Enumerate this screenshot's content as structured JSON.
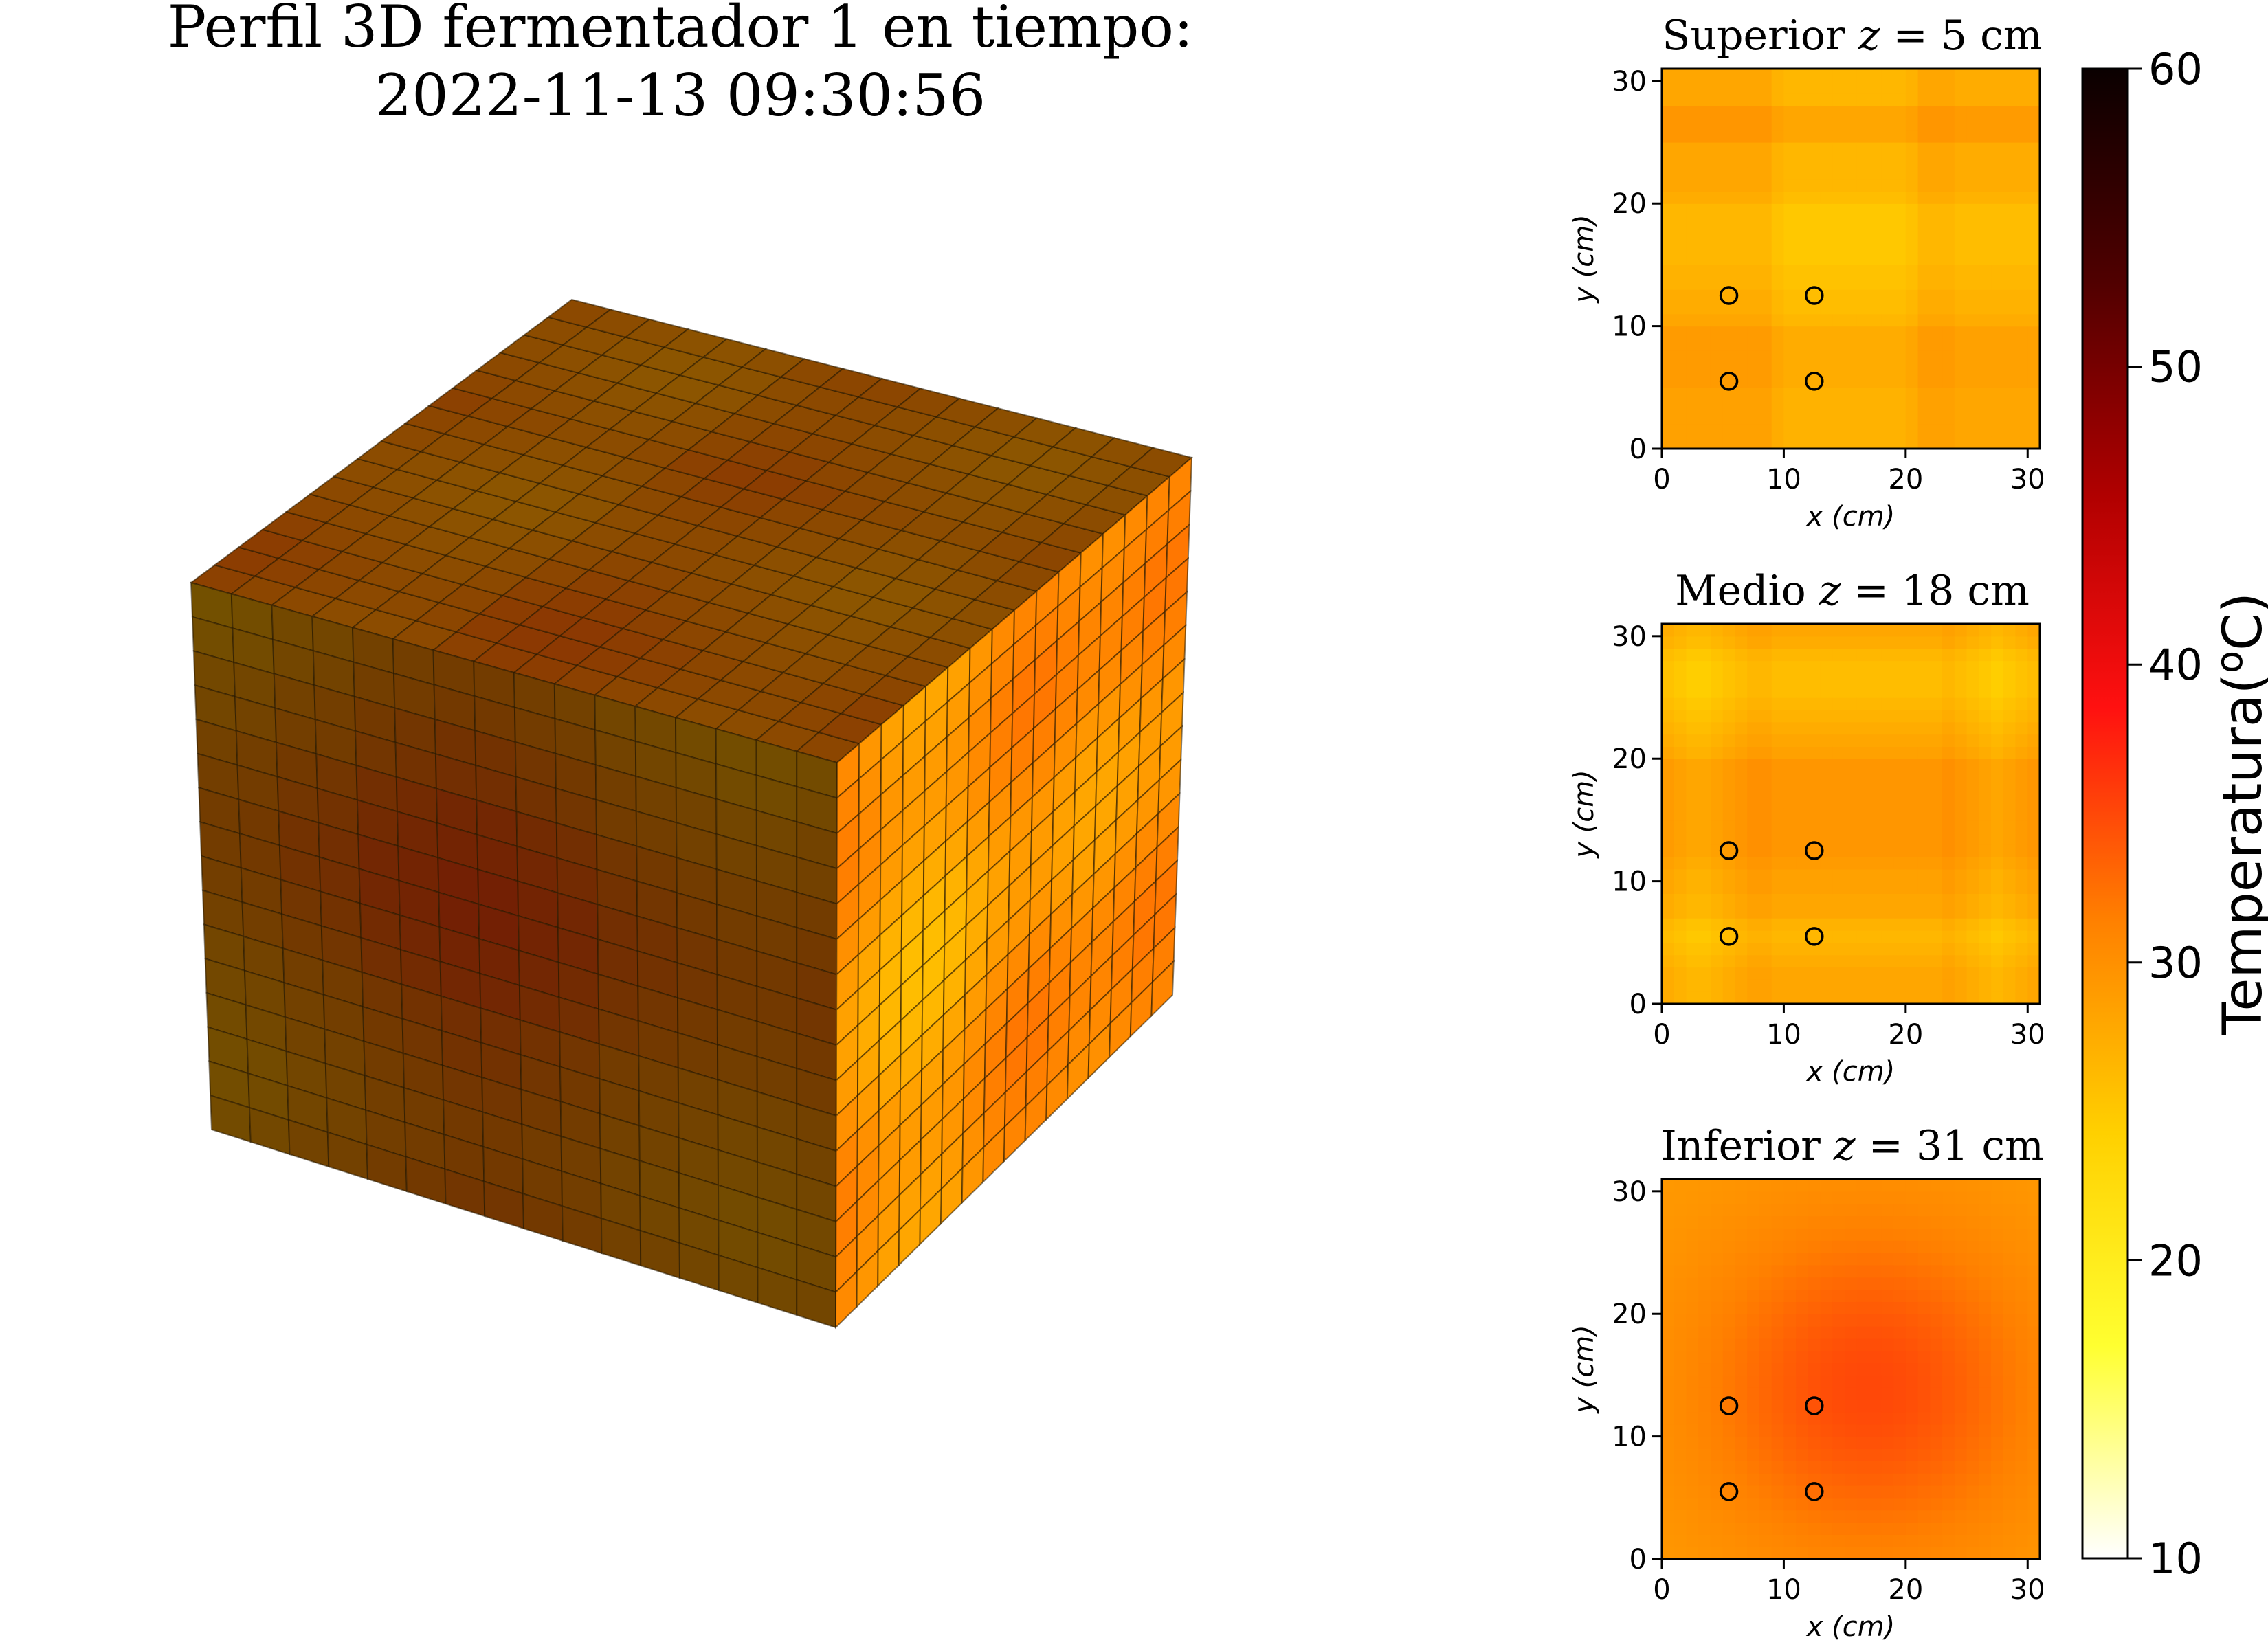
{
  "figure": {
    "title_line1": "Perfil 3D fermentador 1 en tiempo:",
    "title_line2": "2022-11-13 09:30:56"
  },
  "colormap": [
    "#ffffff",
    "#ffff30",
    "#ffd000",
    "#ff8000",
    "#ff1010",
    "#b00000",
    "#500000",
    "#0a0000"
  ],
  "chart_data": [
    {
      "type": "surface3d",
      "name": "cube",
      "grid": 16,
      "description_faces": [
        "top",
        "front",
        "right"
      ],
      "top_profile": [
        32,
        31,
        30,
        29,
        29,
        30,
        32,
        33,
        33,
        32,
        31,
        30,
        29,
        29,
        30,
        31
      ],
      "front_profile": [
        27,
        28,
        30,
        31,
        33,
        34,
        35,
        35,
        34,
        33,
        31,
        30,
        29,
        28,
        28,
        29
      ],
      "right_profile": [
        30,
        31,
        32,
        32,
        31,
        29,
        27,
        26,
        26,
        27,
        29,
        31,
        32,
        32,
        31,
        30
      ]
    },
    {
      "type": "heatmap",
      "name": "superior",
      "title_prefix": "Superior",
      "title_var": "z",
      "title_eq": " = 5 cm",
      "xlabel": "x (cm)",
      "ylabel": "y (cm)",
      "xticks": [
        "0",
        "10",
        "20",
        "30"
      ],
      "yticks": [
        "0",
        "10",
        "20",
        "30"
      ],
      "xlim": [
        0,
        31
      ],
      "ylim": [
        0,
        31
      ],
      "x_profile": [
        28,
        28,
        28,
        28,
        28,
        28,
        28,
        28,
        28,
        26,
        25,
        25,
        25,
        25,
        25,
        25,
        25,
        25,
        25,
        25,
        26,
        28,
        28,
        28,
        27,
        27,
        27,
        27,
        27,
        27,
        27
      ],
      "y_profile": [
        29,
        29,
        29,
        29,
        29,
        30,
        30,
        30,
        30,
        30,
        28,
        27,
        27,
        26,
        26,
        25,
        25,
        25,
        25,
        25,
        27,
        28,
        28,
        28,
        28,
        31,
        31,
        31,
        28,
        28,
        28
      ],
      "sensors": [
        [
          5.5,
          5.5
        ],
        [
          12.5,
          5.5
        ],
        [
          5.5,
          12.5
        ],
        [
          12.5,
          12.5
        ]
      ]
    },
    {
      "type": "heatmap",
      "name": "medio",
      "title_prefix": "Medio",
      "title_var": "z",
      "title_eq": " = 18 cm",
      "xlabel": "x (cm)",
      "ylabel": "y (cm)",
      "xticks": [
        "0",
        "10",
        "20",
        "30"
      ],
      "yticks": [
        "0",
        "10",
        "20",
        "30"
      ],
      "xlim": [
        0,
        31
      ],
      "ylim": [
        0,
        31
      ],
      "x_profile": [
        27,
        26,
        25,
        25,
        26,
        27,
        28,
        29,
        29,
        28,
        28,
        28,
        28,
        28,
        28,
        28,
        28,
        28,
        28,
        28,
        28,
        28,
        28,
        29,
        28,
        27,
        26,
        25,
        26,
        27,
        28
      ],
      "y_profile": [
        28,
        28,
        28,
        27,
        26,
        25,
        26,
        28,
        28,
        29,
        29,
        30,
        31,
        31,
        31,
        31,
        31,
        31,
        31,
        31,
        29,
        28,
        27,
        26,
        25,
        24,
        24,
        24,
        25,
        27,
        28
      ],
      "sensors": [
        [
          5.5,
          5.5
        ],
        [
          12.5,
          5.5
        ],
        [
          5.5,
          12.5
        ],
        [
          12.5,
          12.5
        ]
      ]
    },
    {
      "type": "heatmap",
      "name": "inferior",
      "title_prefix": "Inferior",
      "title_var": "z",
      "title_eq": " = 31 cm",
      "xlabel": "x (cm)",
      "ylabel": "y (cm)",
      "xticks": [
        "0",
        "10",
        "20",
        "30"
      ],
      "yticks": [
        "0",
        "10",
        "20",
        "30"
      ],
      "xlim": [
        0,
        31
      ],
      "ylim": [
        0,
        31
      ],
      "center": [
        17,
        14
      ],
      "peak": 35,
      "base": 29,
      "sensors": [
        [
          5.5,
          5.5
        ],
        [
          12.5,
          5.5
        ],
        [
          5.5,
          12.5
        ],
        [
          12.5,
          12.5
        ]
      ]
    }
  ],
  "colorbar": {
    "label": "Temperatura(",
    "label_sup": "o",
    "label_end": "C)",
    "min": 10,
    "max": 60,
    "ticks": [
      "10",
      "20",
      "30",
      "40",
      "50",
      "60"
    ]
  }
}
